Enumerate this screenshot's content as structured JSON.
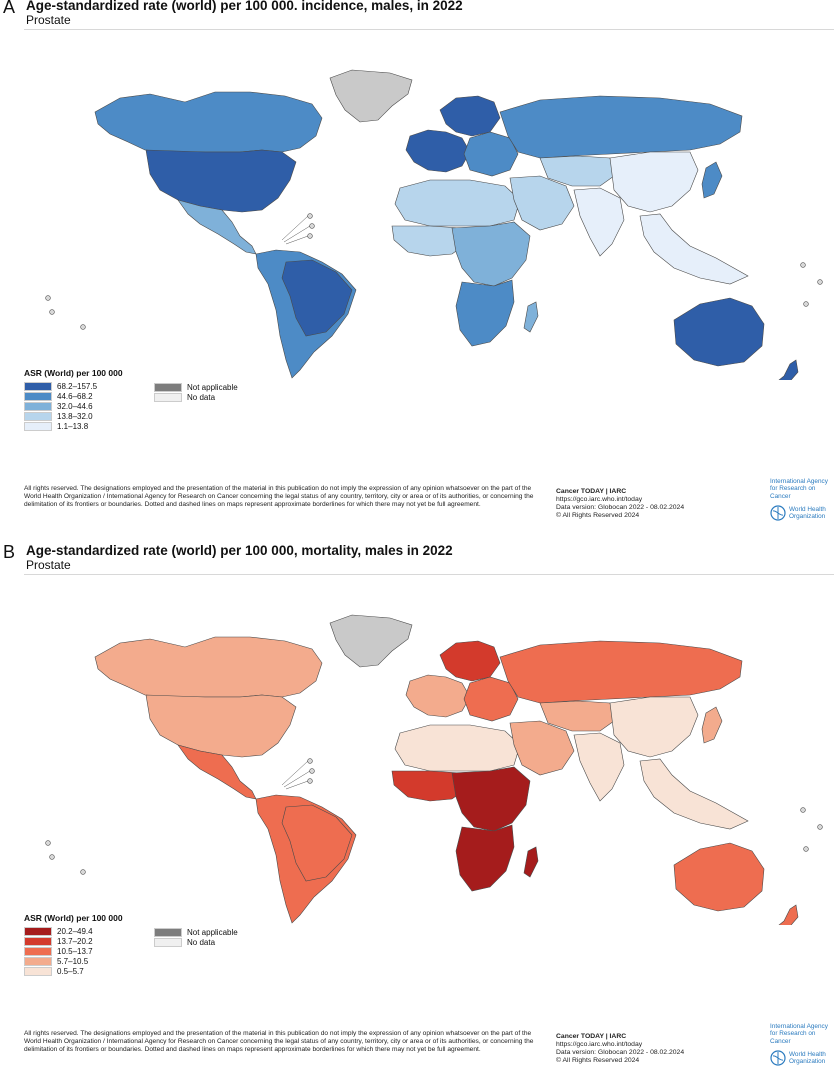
{
  "panels": [
    {
      "letter": "A",
      "title": "Age-standardized rate (world) per 100 000. incidence, males, in 2022",
      "subtitle": "Prostate",
      "legend": {
        "title": "ASR (World) per 100 000",
        "classes": [
          {
            "label": "68.2–157.5",
            "color": "#2f5ea8"
          },
          {
            "label": "44.6–68.2",
            "color": "#4d8bc6"
          },
          {
            "label": "32.0–44.6",
            "color": "#7fb1d9"
          },
          {
            "label": "13.8–32.0",
            "color": "#b7d5ec"
          },
          {
            "label": "1.1–13.8",
            "color": "#e6effa"
          }
        ],
        "not_applicable": {
          "label": "Not applicable",
          "color": "#7d7d7d"
        },
        "no_data": {
          "label": "No data",
          "color": "#f0f0f0"
        }
      },
      "disclaimer": "All rights reserved. The designations employed and the presentation of the material in this publication do not imply the expression of any opinion whatsoever on the part of the World Health Organization / International Agency for Research on Cancer concerning the legal status of any country, territory, city or area or of its authorities, or concerning the delimitation of its frontiers or boundaries. Dotted and dashed lines on maps represent approximate borderlines for which there may not yet be full agreement.",
      "source": {
        "line1": "Cancer TODAY | IARC",
        "line2": "https://gco.iarc.who.int/today",
        "line3": "Data version: Globocan 2022 - 08.02.2024",
        "line4": "© All Rights Reserved 2024"
      },
      "logo": {
        "iarc_line1": "International Agency",
        "iarc_line2": "for Research on Cancer",
        "who_line1": "World Health",
        "who_line2": "Organization"
      },
      "regions": {
        "north_america": "#4d8bc6",
        "usa": "#2f5ea8",
        "central_america": "#7fb1d9",
        "south_america": "#4d8bc6",
        "brazil": "#2f5ea8",
        "greenland": "#c9c9c9",
        "europe_north": "#2f5ea8",
        "europe_west": "#2f5ea8",
        "europe_east": "#4d8bc6",
        "russia": "#4d8bc6",
        "north_africa": "#b7d5ec",
        "west_africa": "#b7d5ec",
        "central_africa": "#7fb1d9",
        "southern_africa": "#4d8bc6",
        "middle_east": "#b7d5ec",
        "central_asia": "#b7d5ec",
        "south_asia": "#e6effa",
        "china": "#e6effa",
        "southeast_asia": "#e6effa",
        "japan": "#4d8bc6",
        "australia": "#2f5ea8",
        "new_zealand": "#2f5ea8",
        "madagascar": "#7fb1d9"
      }
    },
    {
      "letter": "B",
      "title": "Age-standardized rate (world) per 100 000, mortality, males in 2022",
      "subtitle": "Prostate",
      "legend": {
        "title": "ASR (World) per 100 000",
        "classes": [
          {
            "label": "20.2–49.4",
            "color": "#a51c1c"
          },
          {
            "label": "13.7–20.2",
            "color": "#d33a2c"
          },
          {
            "label": "10.5–13.7",
            "color": "#ee6d50"
          },
          {
            "label": "5.7–10.5",
            "color": "#f3ab8d"
          },
          {
            "label": "0.5–5.7",
            "color": "#f8e3d6"
          }
        ],
        "not_applicable": {
          "label": "Not applicable",
          "color": "#7d7d7d"
        },
        "no_data": {
          "label": "No data",
          "color": "#f0f0f0"
        }
      },
      "disclaimer": "All rights reserved. The designations employed and the presentation of the material in this publication do not imply the expression of any opinion whatsoever on the part of the World Health Organization / International Agency for Research on Cancer concerning the legal status of any country, territory, city or area or of its authorities, or concerning the delimitation of its frontiers or boundaries. Dotted and dashed lines on maps represent approximate borderlines for which there may not yet be full agreement.",
      "source": {
        "line1": "Cancer TODAY | IARC",
        "line2": "https://gco.iarc.who.int/today",
        "line3": "Data version: Globocan 2022 - 08.02.2024",
        "line4": "© All Rights Reserved 2024"
      },
      "logo": {
        "iarc_line1": "International Agency",
        "iarc_line2": "for Research on Cancer",
        "who_line1": "World Health",
        "who_line2": "Organization"
      },
      "regions": {
        "north_america": "#f3ab8d",
        "usa": "#f3ab8d",
        "central_america": "#ee6d50",
        "south_america": "#ee6d50",
        "brazil": "#ee6d50",
        "greenland": "#c9c9c9",
        "europe_north": "#d33a2c",
        "europe_west": "#f3ab8d",
        "europe_east": "#ee6d50",
        "russia": "#ee6d50",
        "north_africa": "#f8e3d6",
        "west_africa": "#d33a2c",
        "central_africa": "#a51c1c",
        "southern_africa": "#a51c1c",
        "middle_east": "#f3ab8d",
        "central_asia": "#f3ab8d",
        "south_asia": "#f8e3d6",
        "china": "#f8e3d6",
        "southeast_asia": "#f8e3d6",
        "japan": "#f3ab8d",
        "australia": "#ee6d50",
        "new_zealand": "#ee6d50",
        "madagascar": "#a51c1c"
      }
    }
  ]
}
